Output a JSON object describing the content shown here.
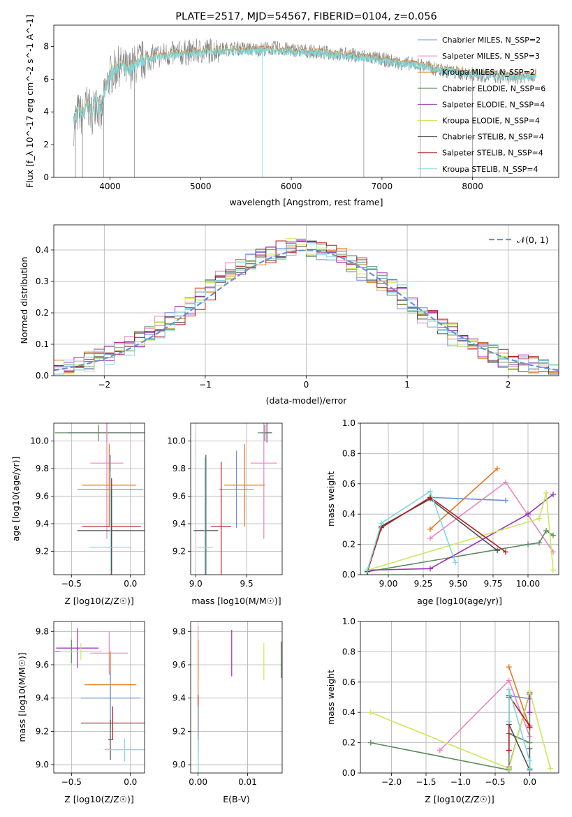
{
  "chart_data": [
    {
      "type": "line",
      "title": "PLATE=2517, MJD=54567, FIBERID=0104, z=0.056",
      "xlabel": "wavelength [Angstrom, rest frame]",
      "ylabel": "Flux [f_λ 10^-17 erg cm^-2 s^-1 A^-1]",
      "xlim": [
        3380,
        8950
      ],
      "ylim": [
        0,
        9.3
      ],
      "xticks": [
        "4000",
        "5000",
        "6000",
        "7000",
        "8000"
      ],
      "yticks": [
        "0",
        "2",
        "4",
        "6",
        "8"
      ],
      "legend_position": "top-right",
      "legend": [
        {
          "name": "Chabrier MILES, N_SSP=2",
          "color": "#6a8fd8"
        },
        {
          "name": "Salpeter MILES, N_SSP=3",
          "color": "#e887c0"
        },
        {
          "name": "Kroupa MILES, N_SSP=2",
          "color": "#e07a1e"
        },
        {
          "name": "Chabrier ELODIE, N_SSP=6",
          "color": "#5a8a5e"
        },
        {
          "name": "Salpeter ELODIE, N_SSP=4",
          "color": "#9b2fb8"
        },
        {
          "name": "Kroupa ELODIE, N_SSP=4",
          "color": "#cbe85a"
        },
        {
          "name": "Chabrier STELIB, N_SSP=4",
          "color": "#4d4d4d"
        },
        {
          "name": "Salpeter STELIB, N_SSP=4",
          "color": "#b41b1b"
        },
        {
          "name": "Kroupa STELIB, N_SSP=4",
          "color": "#7fd8dc"
        }
      ],
      "data_color": "#808080",
      "series": [
        {
          "name": "data",
          "x": [
            3600,
            3650,
            3700,
            3750,
            3800,
            3850,
            3900,
            3950,
            4000,
            4100,
            4200,
            4300,
            4400,
            4500,
            4600,
            4800,
            5000,
            5200,
            5400,
            5600,
            5800,
            6000,
            6200,
            6400,
            6600,
            6800,
            7000,
            7200,
            7400,
            7600,
            7800,
            8000,
            8200,
            8400,
            8600,
            8700
          ],
          "values": [
            3.2,
            4.0,
            3.7,
            4.5,
            3.8,
            4.8,
            3.6,
            5.3,
            6.2,
            6.8,
            6.5,
            7.0,
            7.2,
            7.4,
            7.5,
            7.6,
            7.7,
            7.8,
            7.9,
            7.8,
            7.9,
            7.8,
            7.7,
            7.6,
            7.5,
            7.4,
            7.2,
            7.0,
            6.9,
            6.6,
            6.4,
            6.3,
            6.2,
            6.1,
            6.2,
            6.3
          ]
        },
        {
          "name": "model",
          "x": [
            3600,
            3650,
            3700,
            3750,
            3800,
            3850,
            3900,
            3950,
            4000,
            4100,
            4200,
            4300,
            4400,
            4500,
            4600,
            4800,
            5000,
            5200,
            5400,
            5600,
            5800,
            6000,
            6200,
            6400,
            6600,
            6800,
            7000,
            7200,
            7400,
            7600,
            7800,
            8000,
            8200,
            8400,
            8600,
            8700
          ],
          "values": [
            3.4,
            4.3,
            3.9,
            4.6,
            4.0,
            5.0,
            3.9,
            5.5,
            6.3,
            6.9,
            6.6,
            7.1,
            7.3,
            7.4,
            7.5,
            7.6,
            7.7,
            7.8,
            7.8,
            7.8,
            7.8,
            7.7,
            7.7,
            7.6,
            7.5,
            7.3,
            7.2,
            7.0,
            6.9,
            6.7,
            6.5,
            6.4,
            6.3,
            6.2,
            6.2,
            6.3
          ]
        }
      ]
    },
    {
      "type": "line",
      "xlabel": "(data-model)/error",
      "ylabel": "Normed distribution",
      "xlim": [
        -2.5,
        2.5
      ],
      "ylim": [
        0,
        0.48
      ],
      "xticks": [
        "−2",
        "−1",
        "0",
        "1",
        "2"
      ],
      "yticks": [
        "0.0",
        "0.1",
        "0.2",
        "0.3",
        "0.4"
      ],
      "grid": true,
      "legend_position": "top-right",
      "legend": [
        {
          "name": "𝒩(0, 1)",
          "color": "#6a8fd8"
        }
      ],
      "series": [
        {
          "name": "𝒩(0, 1)",
          "x": [
            -2.5,
            -2.0,
            -1.5,
            -1.0,
            -0.5,
            0.0,
            0.5,
            1.0,
            1.5,
            2.0,
            2.5
          ],
          "values": [
            0.018,
            0.054,
            0.13,
            0.242,
            0.352,
            0.399,
            0.352,
            0.242,
            0.13,
            0.054,
            0.018
          ]
        }
      ]
    },
    {
      "type": "scatter",
      "xlabel": "Z [log10(Z/Z☉)]",
      "ylabel": "age  [log10(age/yr)]",
      "xlim": [
        -0.65,
        0.12
      ],
      "ylim": [
        9.03,
        10.13
      ],
      "xticks": [
        "−0.5",
        "0.0"
      ],
      "yticks": [
        "9.2",
        "9.4",
        "9.6",
        "9.8",
        "10.0"
      ],
      "grid": true,
      "points": [
        {
          "x": -0.2,
          "y": 10.06,
          "xerr": 0.33,
          "yerr": 0.07,
          "color": "#9b2fb8"
        },
        {
          "x": -0.27,
          "y": 10.06,
          "xerr": 0.37,
          "yerr": 0.06,
          "color": "#5a8a5e"
        },
        {
          "x": -0.2,
          "y": 9.84,
          "xerr": 0.14,
          "yerr": 0.55,
          "color": "#e887c0"
        },
        {
          "x": -0.18,
          "y": 9.68,
          "xerr": 0.23,
          "yerr": 0.3,
          "color": "#e07a1e"
        },
        {
          "x": -0.17,
          "y": 9.65,
          "xerr": 0.28,
          "yerr": 0.25,
          "color": "#6a8fd8"
        },
        {
          "x": -0.16,
          "y": 9.38,
          "xerr": 0.25,
          "yerr": 0.35,
          "color": "#b41b1b"
        },
        {
          "x": -0.16,
          "y": 9.35,
          "xerr": 0.29,
          "yerr": 0.3,
          "color": "#4d4d4d"
        },
        {
          "x": -0.17,
          "y": 9.23,
          "xerr": 0.18,
          "yerr": 0.55,
          "color": "#7fd8dc"
        }
      ]
    },
    {
      "type": "scatter",
      "xlabel": "mass [log10(M/M☉)]",
      "ylabel": "",
      "xlim": [
        8.95,
        9.85
      ],
      "ylim": [
        9.03,
        10.13
      ],
      "xticks": [
        "9.0",
        "9.5"
      ],
      "yticks": [
        "9.2",
        "9.4",
        "9.6",
        "9.8",
        "10.0"
      ],
      "grid": true,
      "points": [
        {
          "x": 9.7,
          "y": 10.06,
          "xerr": 0.05,
          "yerr": 0.07,
          "color": "#9b2fb8"
        },
        {
          "x": 9.68,
          "y": 10.06,
          "xerr": 0.07,
          "yerr": 0.06,
          "color": "#5a8a5e"
        },
        {
          "x": 9.67,
          "y": 9.84,
          "xerr": 0.13,
          "yerr": 0.55,
          "color": "#e887c0"
        },
        {
          "x": 9.48,
          "y": 9.68,
          "xerr": 0.2,
          "yerr": 0.3,
          "color": "#e07a1e"
        },
        {
          "x": 9.4,
          "y": 9.65,
          "xerr": 0.17,
          "yerr": 0.28,
          "color": "#6a8fd8"
        },
        {
          "x": 9.25,
          "y": 9.38,
          "xerr": 0.1,
          "yerr": 0.47,
          "color": "#b41b1b"
        },
        {
          "x": 9.1,
          "y": 9.35,
          "xerr": 0.12,
          "yerr": 0.55,
          "color": "#4d4d4d"
        },
        {
          "x": 9.09,
          "y": 9.23,
          "xerr": 0.08,
          "yerr": 0.65,
          "color": "#7fd8dc"
        }
      ]
    },
    {
      "type": "line",
      "xlabel": "age  [log10(age/yr)]",
      "ylabel": "mass weight",
      "xlim": [
        8.8,
        10.22
      ],
      "ylim": [
        0,
        1.0
      ],
      "xticks": [
        "9.00",
        "9.25",
        "9.50",
        "9.75",
        "10.00"
      ],
      "yticks": [
        "0.0",
        "0.2",
        "0.4",
        "0.6",
        "0.8",
        "1.0"
      ],
      "grid": true,
      "series": [
        {
          "color": "#6a8fd8",
          "x": [
            9.3,
            9.84
          ],
          "values": [
            0.51,
            0.49
          ]
        },
        {
          "color": "#e887c0",
          "x": [
            9.3,
            9.84,
            10.18
          ],
          "values": [
            0.24,
            0.61,
            0.15
          ]
        },
        {
          "color": "#e07a1e",
          "x": [
            9.3,
            9.78
          ],
          "values": [
            0.3,
            0.7
          ]
        },
        {
          "color": "#5a8a5e",
          "x": [
            8.85,
            10.0,
            10.08,
            10.13,
            10.18
          ],
          "values": [
            0.02,
            0.2,
            0.21,
            0.29,
            0.26
          ]
        },
        {
          "color": "#9b2fb8",
          "x": [
            8.85,
            9.3,
            10.0,
            10.18
          ],
          "values": [
            0.03,
            0.04,
            0.4,
            0.53
          ]
        },
        {
          "color": "#cbe85a",
          "x": [
            8.85,
            10.08,
            10.13,
            10.18
          ],
          "values": [
            0.03,
            0.37,
            0.54,
            0.03
          ]
        },
        {
          "color": "#4d4d4d",
          "x": [
            8.85,
            8.95,
            9.3,
            9.78
          ],
          "values": [
            0.02,
            0.32,
            0.5,
            0.16
          ]
        },
        {
          "color": "#b41b1b",
          "x": [
            8.85,
            8.95,
            9.3,
            9.84
          ],
          "values": [
            0.02,
            0.31,
            0.51,
            0.15
          ]
        },
        {
          "color": "#7fd8dc",
          "x": [
            8.85,
            8.95,
            9.3,
            9.48
          ],
          "values": [
            0.03,
            0.34,
            0.55,
            0.08
          ]
        }
      ]
    },
    {
      "type": "scatter",
      "xlabel": "Z [log10(Z/Z☉)]",
      "ylabel": "mass [log10(M/M☉)]",
      "xlim": [
        -0.65,
        0.12
      ],
      "ylim": [
        8.95,
        9.86
      ],
      "xticks": [
        "−0.5",
        "0.0"
      ],
      "yticks": [
        "9.0",
        "9.2",
        "9.4",
        "9.6",
        "9.8"
      ],
      "grid": true,
      "points": [
        {
          "x": -0.45,
          "y": 9.7,
          "xerr": 0.18,
          "yerr": 0.12,
          "color": "#9b2fb8"
        },
        {
          "x": -0.5,
          "y": 9.68,
          "xerr": 0.14,
          "yerr": 0.07,
          "color": "#5a8a5e"
        },
        {
          "x": -0.42,
          "y": 9.68,
          "xerr": 0.18,
          "yerr": 0.05,
          "color": "#cbe85a"
        },
        {
          "x": -0.18,
          "y": 9.67,
          "xerr": 0.16,
          "yerr": 0.13,
          "color": "#e887c0"
        },
        {
          "x": -0.17,
          "y": 9.48,
          "xerr": 0.22,
          "yerr": 0.2,
          "color": "#e07a1e"
        },
        {
          "x": -0.17,
          "y": 9.4,
          "xerr": 0.25,
          "yerr": 0.17,
          "color": "#6a8fd8"
        },
        {
          "x": -0.15,
          "y": 9.25,
          "xerr": 0.27,
          "yerr": 0.1,
          "color": "#b41b1b"
        },
        {
          "x": -0.17,
          "y": 9.15,
          "xerr": 0.02,
          "yerr": 0.12,
          "color": "#4d4d4d"
        },
        {
          "x": -0.05,
          "y": 9.09,
          "xerr": 0.17,
          "yerr": 0.07,
          "color": "#7fd8dc"
        }
      ]
    },
    {
      "type": "scatter",
      "xlabel": "E(B-V)",
      "ylabel": "",
      "xlim": [
        -0.0015,
        0.017
      ],
      "ylim": [
        8.95,
        9.86
      ],
      "xticks": [
        "0.00",
        "0.01"
      ],
      "yticks": [
        "9.0",
        "9.2",
        "9.4",
        "9.6",
        "9.8"
      ],
      "grid": true,
      "points": [
        {
          "x": 0.0,
          "y": 9.67,
          "yerr": 0.16,
          "color": "#e887c0"
        },
        {
          "x": 0.0,
          "y": 9.48,
          "yerr": 0.27,
          "color": "#e07a1e"
        },
        {
          "x": 0.0,
          "y": 9.25,
          "yerr": 0.17,
          "color": "#b41b1b"
        },
        {
          "x": 0.0,
          "y": 9.1,
          "yerr": 0.25,
          "color": "#6a8fd8"
        },
        {
          "x": 0.0,
          "y": 9.05,
          "yerr": 0.1,
          "color": "#7fd8dc"
        },
        {
          "x": 0.0068,
          "y": 9.67,
          "yerr": 0.14,
          "color": "#9b2fb8"
        },
        {
          "x": 0.0133,
          "y": 9.62,
          "yerr": 0.11,
          "color": "#cbe85a"
        },
        {
          "x": 0.0168,
          "y": 9.63,
          "yerr": 0.11,
          "color": "#5a8a5e"
        }
      ]
    },
    {
      "type": "line",
      "xlabel": "Z [log10(Z/Z☉)]",
      "ylabel": "mass weight",
      "xlim": [
        -2.45,
        0.42
      ],
      "ylim": [
        0,
        1.0
      ],
      "xticks": [
        "−2.0",
        "−1.5",
        "−1.0",
        "−0.5",
        "0.0"
      ],
      "yticks": [
        "0.0",
        "0.2",
        "0.4",
        "0.6",
        "0.8",
        "1.0"
      ],
      "grid": true,
      "series": [
        {
          "color": "#6a8fd8",
          "x": [
            -0.3,
            0.0
          ],
          "values": [
            0.51,
            0.49
          ]
        },
        {
          "color": "#e887c0",
          "x": [
            -1.3,
            -0.3,
            0.0
          ],
          "values": [
            0.15,
            0.61,
            0.24
          ]
        },
        {
          "color": "#e07a1e",
          "x": [
            -0.3,
            0.0
          ],
          "values": [
            0.7,
            0.3
          ]
        },
        {
          "color": "#5a8a5e",
          "x": [
            -2.3,
            -0.3,
            -0.3,
            0.0,
            0.0
          ],
          "values": [
            0.2,
            0.02,
            0.26,
            0.2,
            0.52
          ]
        },
        {
          "color": "#9b2fb8",
          "x": [
            -0.3,
            -0.3,
            0.0,
            0.0
          ],
          "values": [
            0.03,
            0.04,
            0.53,
            0.4
          ]
        },
        {
          "color": "#cbe85a",
          "x": [
            -2.3,
            -0.3,
            0.0,
            0.3
          ],
          "values": [
            0.4,
            0.03,
            0.54,
            0.03
          ]
        },
        {
          "color": "#4d4d4d",
          "x": [
            -0.3,
            -0.3,
            0.0,
            0.0
          ],
          "values": [
            0.5,
            0.32,
            0.02,
            0.16
          ]
        },
        {
          "color": "#b41b1b",
          "x": [
            -0.3,
            -0.3,
            0.0,
            0.0
          ],
          "values": [
            0.15,
            0.51,
            0.31,
            0.3
          ]
        },
        {
          "color": "#7fd8dc",
          "x": [
            -0.3,
            -0.3,
            0.0,
            0.0
          ],
          "values": [
            0.34,
            0.55,
            0.08,
            0.03
          ]
        }
      ]
    }
  ]
}
